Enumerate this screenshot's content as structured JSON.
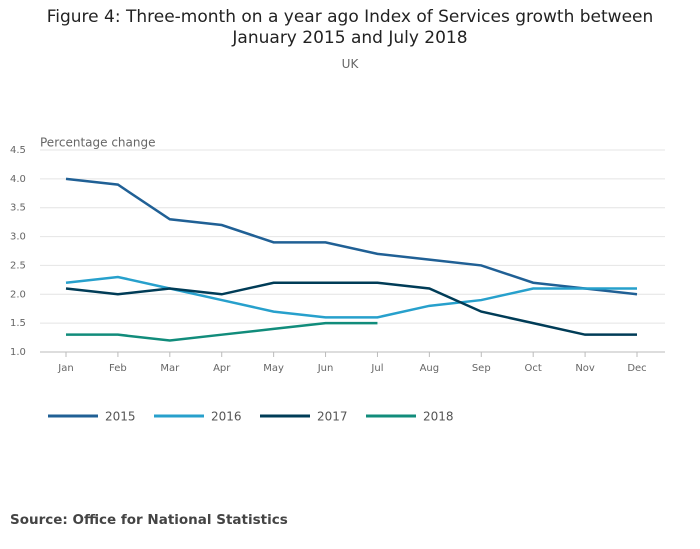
{
  "chart_data": {
    "type": "line",
    "title": "Figure 4: Three-month on a year ago Index of Services growth between January 2015 and July 2018",
    "subtitle": "UK",
    "y_label": "Percentage change",
    "source": "Source: Office for National Statistics",
    "categories": [
      "Jan",
      "Feb",
      "Mar",
      "Apr",
      "May",
      "Jun",
      "Jul",
      "Aug",
      "Sep",
      "Oct",
      "Nov",
      "Dec"
    ],
    "series": [
      {
        "name": "2015",
        "color": "#206095",
        "values": [
          4.0,
          3.9,
          3.3,
          3.2,
          2.9,
          2.9,
          2.7,
          2.6,
          2.5,
          2.2,
          2.1,
          2.0
        ]
      },
      {
        "name": "2016",
        "color": "#27a0cc",
        "values": [
          2.2,
          2.3,
          2.1,
          1.9,
          1.7,
          1.6,
          1.6,
          1.8,
          1.9,
          2.1,
          2.1,
          2.1
        ]
      },
      {
        "name": "2017",
        "color": "#003c57",
        "values": [
          2.1,
          2.0,
          2.1,
          2.0,
          2.2,
          2.2,
          2.2,
          2.1,
          1.7,
          1.5,
          1.3,
          1.3
        ]
      },
      {
        "name": "2018",
        "color": "#118c7b",
        "values": [
          1.3,
          1.3,
          1.2,
          1.3,
          1.4,
          1.5,
          1.5,
          null,
          null,
          null,
          null,
          null
        ]
      }
    ],
    "ylim": [
      1.0,
      4.5
    ],
    "yticks": [
      {
        "value": 1.0,
        "label": "1.0"
      },
      1.5,
      {
        "value": 2.0,
        "label": "2.0"
      },
      2.5,
      {
        "value": 3.0,
        "label": "3.0"
      },
      3.5,
      {
        "value": 4.0,
        "label": "4.0"
      },
      4.5
    ],
    "grid": true,
    "legend": "bottom"
  }
}
